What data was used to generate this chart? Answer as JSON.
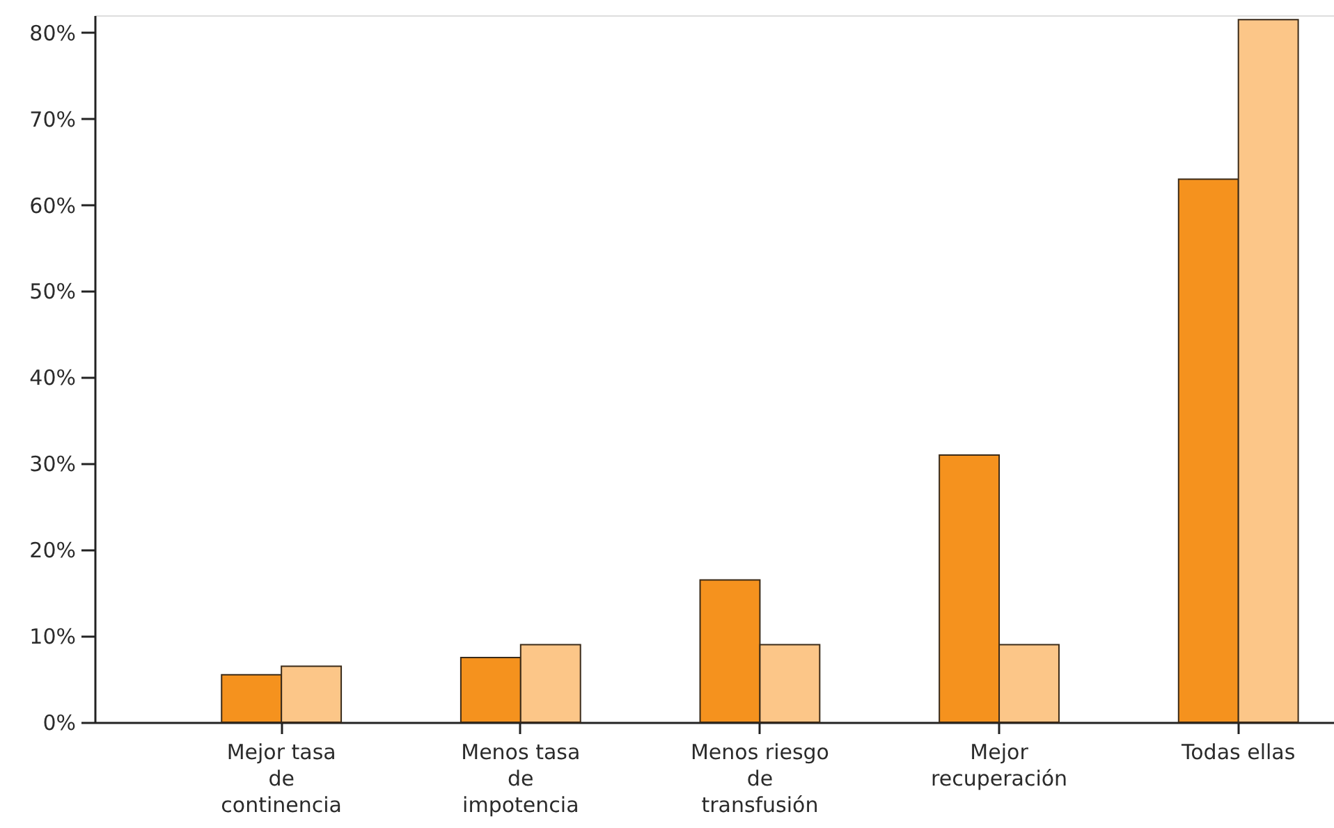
{
  "chart_data": {
    "type": "bar",
    "categories": [
      "Mejor tasa\nde\ncontinencia",
      "Menos tasa\nde\nimpotencia",
      "Menos riesgo\nde\ntransfusión",
      "Mejor\nrecuperación",
      "Todas ellas"
    ],
    "series": [
      {
        "color": "#f5921e",
        "values": [
          5.5,
          7.5,
          16.5,
          31,
          63
        ]
      },
      {
        "color": "#fcc688",
        "values": [
          6.5,
          9,
          9,
          9,
          81.5
        ]
      }
    ],
    "ylim": [
      0,
      82
    ],
    "yticks": [
      {
        "value": 0,
        "label": "0%"
      },
      {
        "value": 10,
        "label": "10%"
      },
      {
        "value": 20,
        "label": "20%"
      },
      {
        "value": 30,
        "label": "30%"
      },
      {
        "value": 40,
        "label": "40%"
      },
      {
        "value": 50,
        "label": "50%"
      },
      {
        "value": 60,
        "label": "60%"
      },
      {
        "value": 70,
        "label": "70%"
      },
      {
        "value": 80,
        "label": "80%"
      }
    ]
  }
}
